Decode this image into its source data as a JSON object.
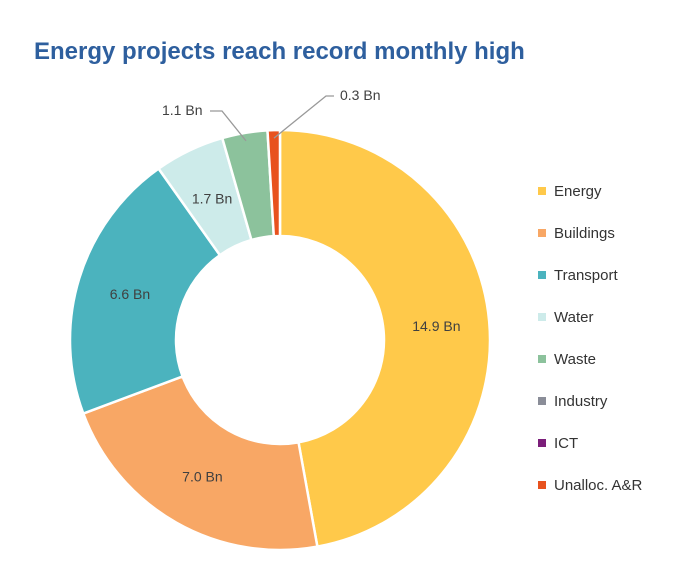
{
  "chart_data": {
    "type": "pie",
    "title": "Energy projects reach record monthly high",
    "donut": true,
    "categories": [
      "Energy",
      "Buildings",
      "Transport",
      "Water",
      "Waste",
      "Industry",
      "ICT",
      "Unalloc. A&R"
    ],
    "values": [
      14.9,
      7.0,
      6.6,
      1.7,
      1.1,
      0,
      0,
      0.3
    ],
    "data_labels": [
      "14.9 Bn",
      "7.0 Bn",
      "6.6 Bn",
      "1.7 Bn",
      "1.1 Bn",
      "",
      "",
      "0.3 Bn"
    ],
    "colors": [
      "#FFC94A",
      "#F8A765",
      "#4BB3BE",
      "#CDEBEA",
      "#8CC29C",
      "#8A8D98",
      "#7B1E7A",
      "#E8521E"
    ],
    "legend_position": "right"
  }
}
